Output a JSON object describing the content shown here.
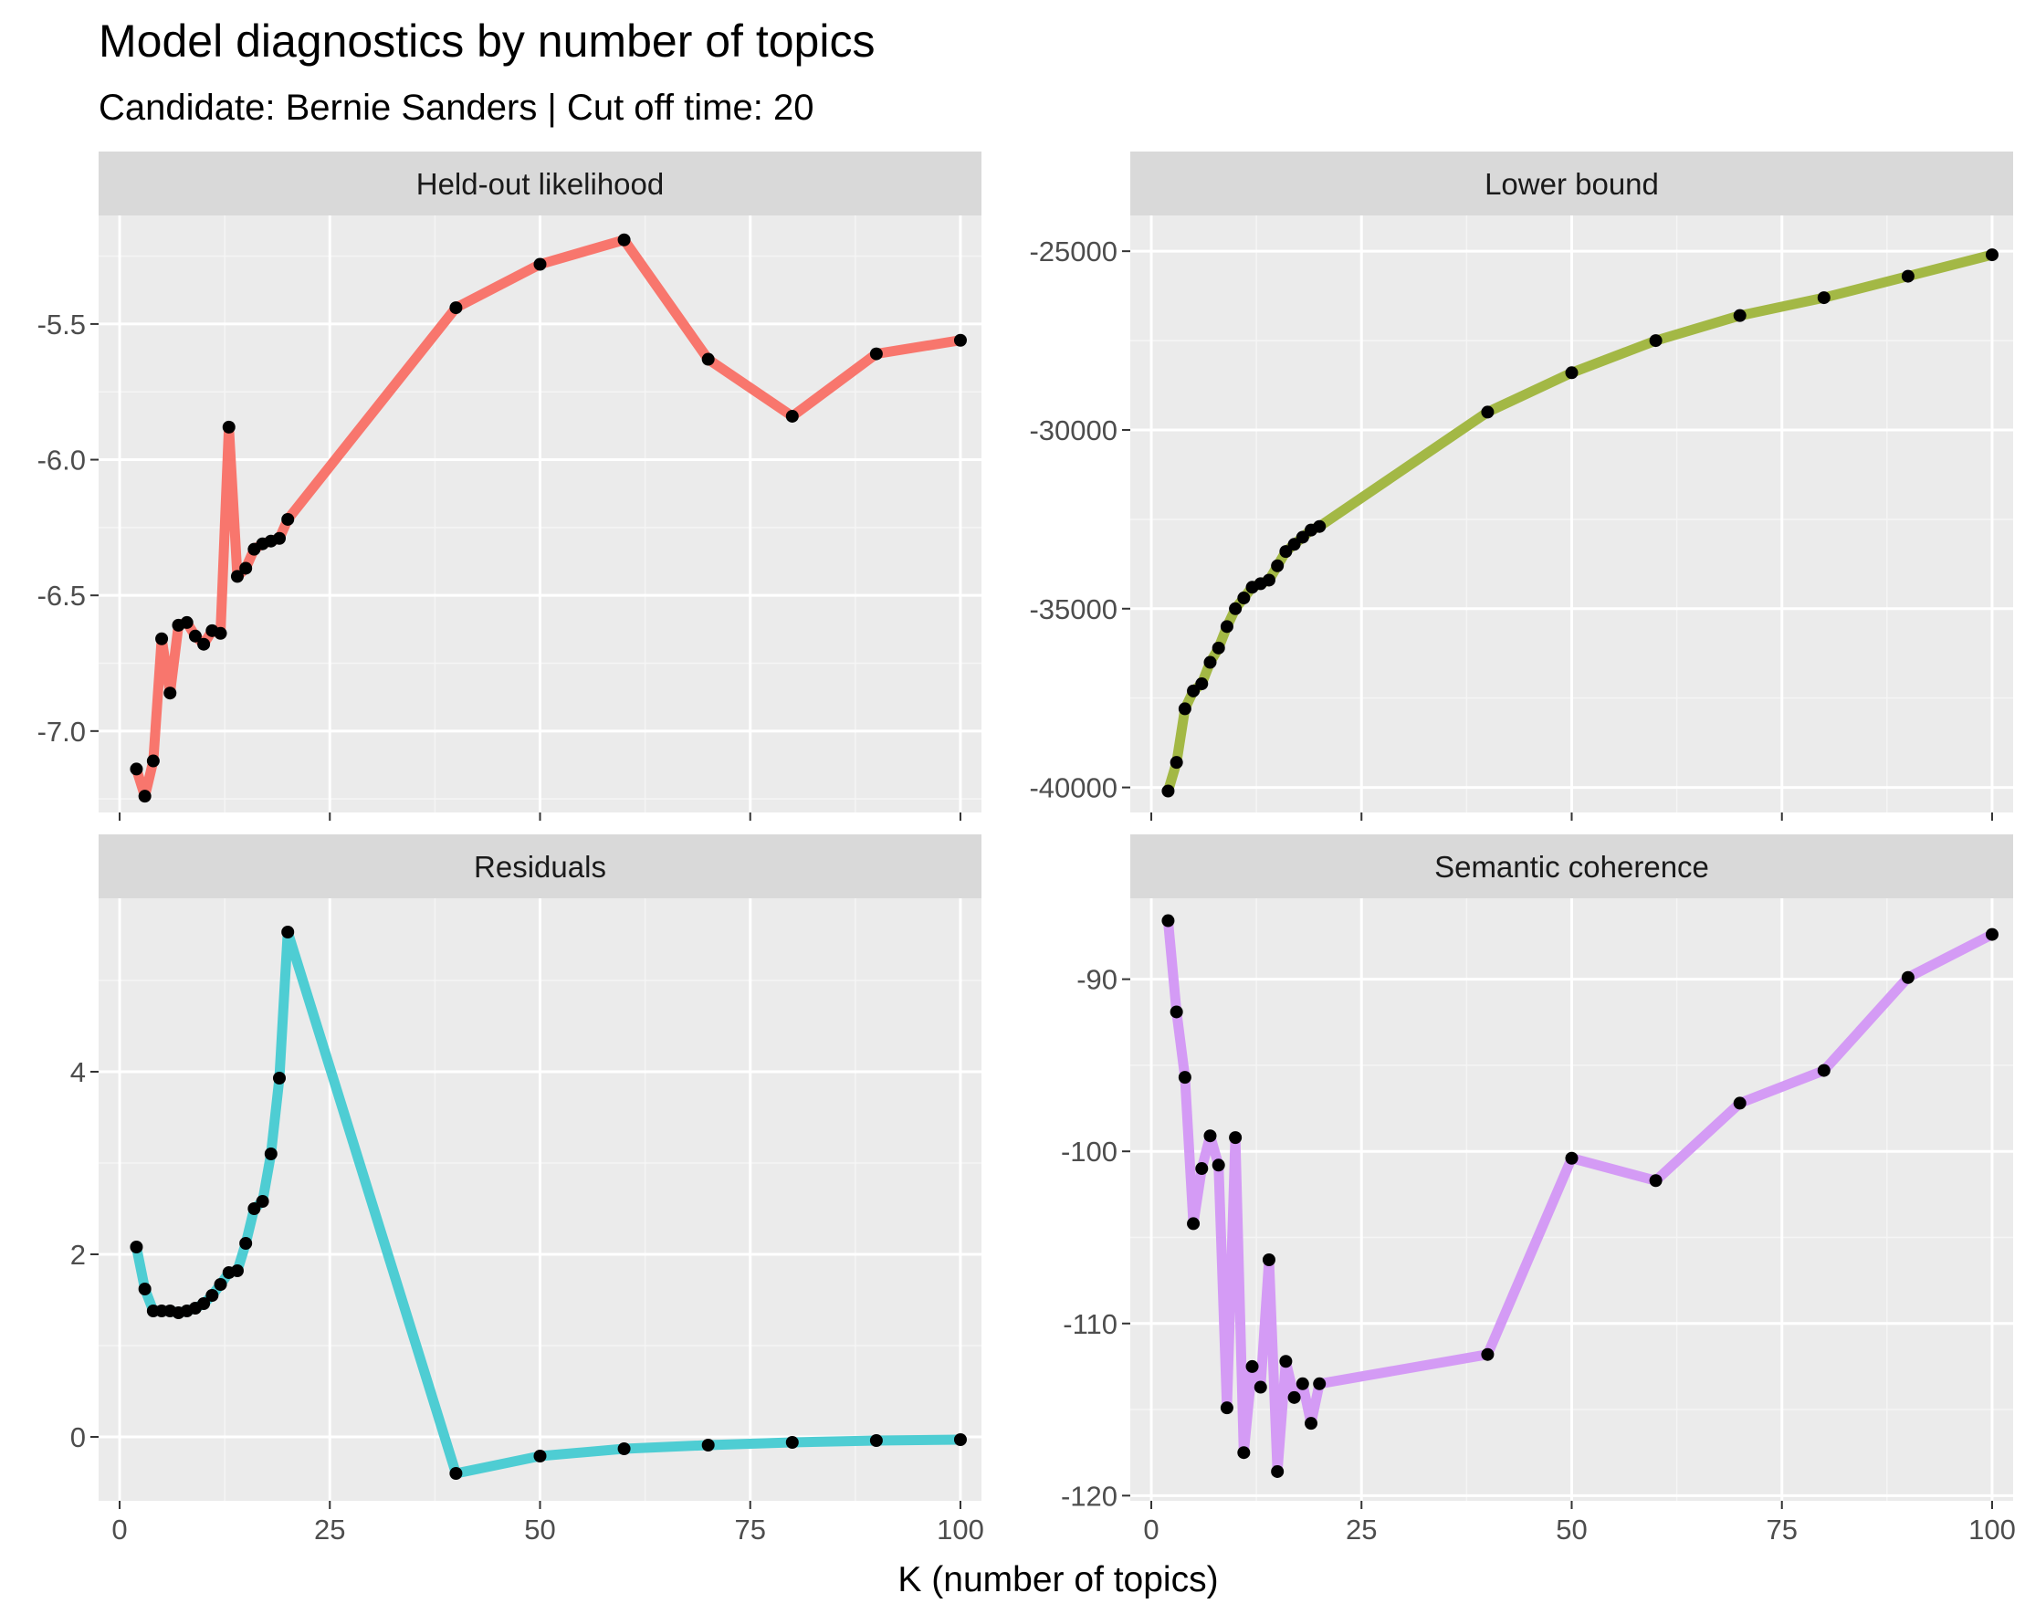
{
  "title": "Model diagnostics by number of topics",
  "subtitle": "Candidate: Bernie Sanders | Cut off time: 20",
  "xlabel": "K (number of topics)",
  "chart_data": [
    {
      "type": "line",
      "panel": "Held-out likelihood",
      "color": "#F8766D",
      "x": [
        2,
        3,
        4,
        5,
        6,
        7,
        8,
        9,
        10,
        11,
        12,
        13,
        14,
        15,
        16,
        17,
        18,
        19,
        20,
        40,
        50,
        60,
        70,
        80,
        90,
        100
      ],
      "y": [
        -7.14,
        -7.24,
        -7.11,
        -6.66,
        -6.86,
        -6.61,
        -6.6,
        -6.65,
        -6.68,
        -6.63,
        -6.64,
        -5.88,
        -6.43,
        -6.4,
        -6.33,
        -6.31,
        -6.3,
        -6.29,
        -6.22,
        -5.44,
        -5.28,
        -5.19,
        -5.63,
        -5.84,
        -5.61,
        -5.56
      ],
      "xlim": [
        0,
        100
      ],
      "ylim": [
        -7.3,
        -5.1
      ],
      "xticks": [
        0,
        25,
        50,
        75,
        100
      ],
      "yticks": [
        -7.0,
        -6.5,
        -6.0,
        -5.5
      ],
      "ytick_labels": [
        "-7.0",
        "-6.5",
        "-6.0",
        "-5.5"
      ]
    },
    {
      "type": "line",
      "panel": "Lower bound",
      "color": "#A3B845",
      "x": [
        2,
        3,
        4,
        5,
        6,
        7,
        8,
        9,
        10,
        11,
        12,
        13,
        14,
        15,
        16,
        17,
        18,
        19,
        20,
        40,
        50,
        60,
        70,
        80,
        90,
        100
      ],
      "y": [
        -40100,
        -39300,
        -37800,
        -37300,
        -37100,
        -36500,
        -36100,
        -35500,
        -35000,
        -34700,
        -34400,
        -34300,
        -34200,
        -33800,
        -33400,
        -33200,
        -33000,
        -32800,
        -32700,
        -29500,
        -28400,
        -27500,
        -26800,
        -26300,
        -25700,
        -25100
      ],
      "xlim": [
        0,
        100
      ],
      "ylim": [
        -40700,
        -24000
      ],
      "xticks": [
        0,
        25,
        50,
        75,
        100
      ],
      "yticks": [
        -40000,
        -35000,
        -30000,
        -25000
      ],
      "ytick_labels": [
        "-40000",
        "-35000",
        "-30000",
        "-25000"
      ]
    },
    {
      "type": "line",
      "panel": "Residuals",
      "color": "#4ECDD3",
      "x": [
        2,
        3,
        4,
        5,
        6,
        7,
        8,
        9,
        10,
        11,
        12,
        13,
        14,
        15,
        16,
        17,
        18,
        19,
        20,
        40,
        50,
        60,
        70,
        80,
        90,
        100
      ],
      "y": [
        2.08,
        1.62,
        1.38,
        1.38,
        1.38,
        1.36,
        1.38,
        1.41,
        1.46,
        1.55,
        1.67,
        1.8,
        1.82,
        2.12,
        2.5,
        2.58,
        3.1,
        3.93,
        5.53,
        -0.4,
        -0.21,
        -0.13,
        -0.09,
        -0.06,
        -0.04,
        -0.03
      ],
      "xlim": [
        0,
        100
      ],
      "ylim": [
        -0.7,
        5.9
      ],
      "xticks": [
        0,
        25,
        50,
        75,
        100
      ],
      "yticks": [
        0,
        2,
        4
      ],
      "ytick_labels": [
        "0",
        "2",
        "4"
      ]
    },
    {
      "type": "line",
      "panel": "Semantic coherence",
      "color": "#D49BF5",
      "x": [
        2,
        3,
        4,
        5,
        6,
        7,
        8,
        9,
        10,
        11,
        12,
        13,
        14,
        15,
        16,
        17,
        18,
        19,
        20,
        40,
        50,
        60,
        70,
        80,
        90,
        100
      ],
      "y": [
        -86.6,
        -91.9,
        -95.7,
        -104.2,
        -101.0,
        -99.1,
        -100.8,
        -114.9,
        -99.2,
        -117.5,
        -112.5,
        -113.7,
        -106.3,
        -118.6,
        -112.2,
        -114.3,
        -113.5,
        -115.8,
        -113.5,
        -111.8,
        -100.4,
        -101.7,
        -97.2,
        -95.3,
        -89.9,
        -87.4
      ],
      "xlim": [
        0,
        100
      ],
      "ylim": [
        -120.3,
        -85.3
      ],
      "xticks": [
        0,
        25,
        50,
        75,
        100
      ],
      "yticks": [
        -120,
        -110,
        -100,
        -90
      ],
      "ytick_labels": [
        "-120",
        "-110",
        "-100",
        "-90"
      ]
    }
  ]
}
